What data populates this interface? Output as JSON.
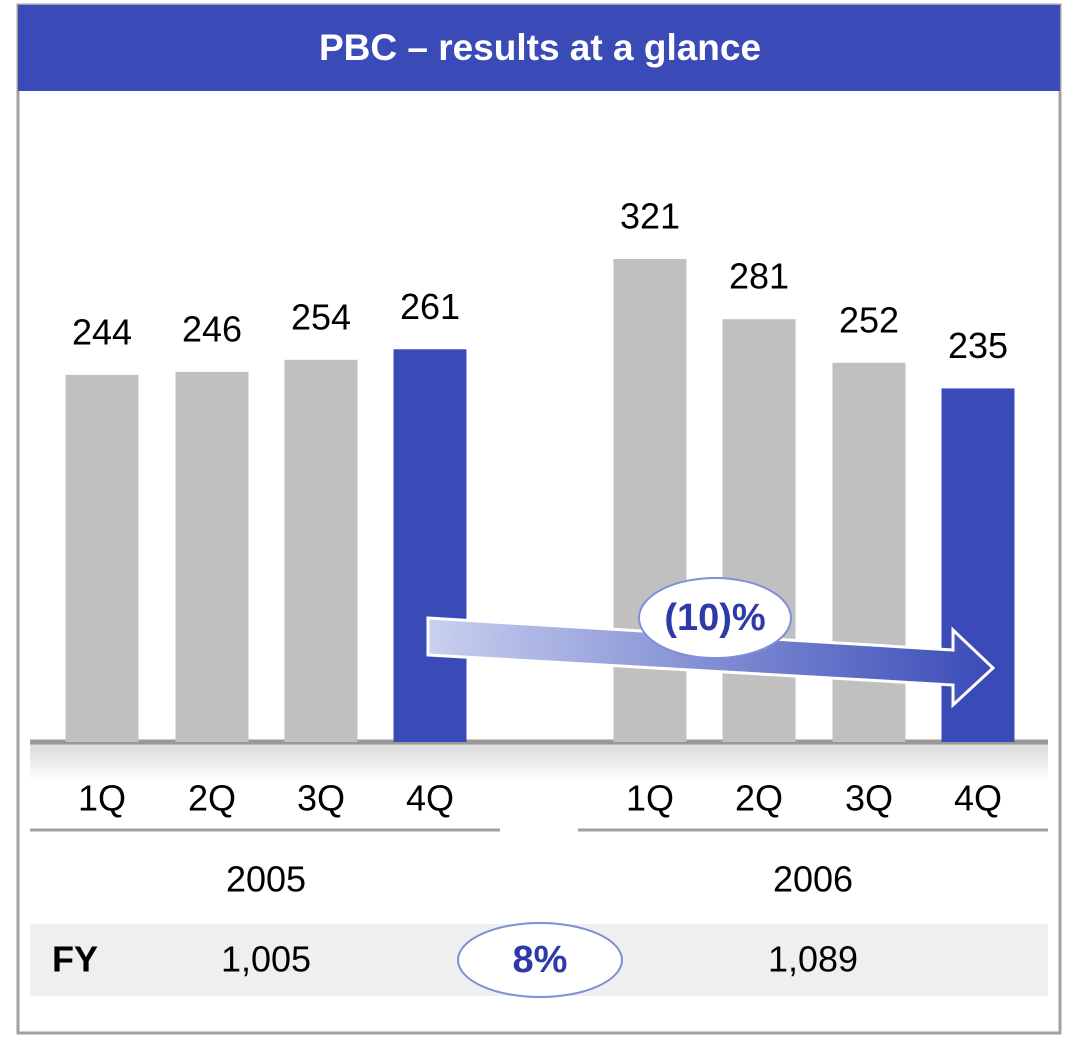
{
  "chart_data": {
    "type": "bar",
    "title": "PBC – results at a glance",
    "categories": [
      "1Q",
      "2Q",
      "3Q",
      "4Q",
      "1Q",
      "2Q",
      "3Q",
      "4Q"
    ],
    "groups": [
      "2005",
      "2006"
    ],
    "values": [
      244,
      246,
      254,
      261,
      321,
      281,
      252,
      235
    ],
    "colors": [
      "#c0c0c0",
      "#c0c0c0",
      "#c0c0c0",
      "#3a4bb8",
      "#c0c0c0",
      "#c0c0c0",
      "#c0c0c0",
      "#3a4bb8"
    ],
    "annotation": "(10)%",
    "fy_row": [
      "FY",
      "1,005",
      "8%",
      "1,089"
    ]
  }
}
